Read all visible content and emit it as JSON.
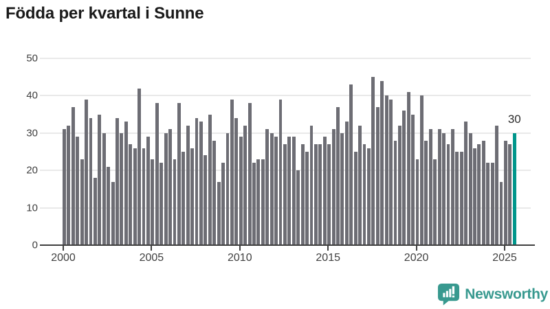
{
  "title": "Födda per kvartal i Sunne",
  "colors": {
    "title_text": "#1a1a1a",
    "bar": "#6d6d74",
    "highlight": "#00968b",
    "grid": "#e9e9e9",
    "axis": "#3f3f3f",
    "tick_text": "#3f3f3f",
    "annotation_text": "#2b2b2b",
    "logo": "#38998f"
  },
  "chart_data": {
    "type": "bar",
    "title": "Födda per kvartal i Sunne",
    "xlabel": "",
    "ylabel": "",
    "ylim": [
      0,
      50
    ],
    "grid": true,
    "first_quarter": "2000 Q1",
    "last_quarter": "2025 Q3",
    "values": [
      31,
      32,
      37,
      29,
      23,
      39,
      34,
      18,
      35,
      30,
      21,
      17,
      34,
      30,
      33,
      27,
      26,
      42,
      26,
      29,
      23,
      38,
      22,
      30,
      31,
      23,
      38,
      25,
      32,
      26,
      34,
      33,
      24,
      35,
      28,
      17,
      22,
      30,
      39,
      34,
      29,
      32,
      38,
      22,
      23,
      23,
      31,
      30,
      29,
      39,
      27,
      29,
      29,
      20,
      27,
      25,
      32,
      27,
      27,
      29,
      27,
      31,
      37,
      30,
      33,
      43,
      25,
      32,
      27,
      26,
      45,
      37,
      44,
      40,
      39,
      28,
      32,
      36,
      41,
      35,
      23,
      40,
      28,
      31,
      23,
      31,
      30,
      27,
      31,
      25,
      25,
      33,
      30,
      26,
      27,
      28,
      22,
      22,
      32,
      17,
      28,
      27,
      30
    ],
    "highlight_last_bar": true,
    "annotation": {
      "text": "30"
    },
    "x_ticks": [
      {
        "label": "2000",
        "index": 0
      },
      {
        "label": "2005",
        "index": 20
      },
      {
        "label": "2010",
        "index": 40
      },
      {
        "label": "2015",
        "index": 60
      },
      {
        "label": "2020",
        "index": 80
      },
      {
        "label": "2025",
        "index": 100
      }
    ],
    "y_ticks": [
      0,
      10,
      20,
      30,
      40,
      50
    ]
  },
  "logo": {
    "text": "Newsworthy",
    "icon": "newsworthy-bubble-barchart-icon"
  }
}
